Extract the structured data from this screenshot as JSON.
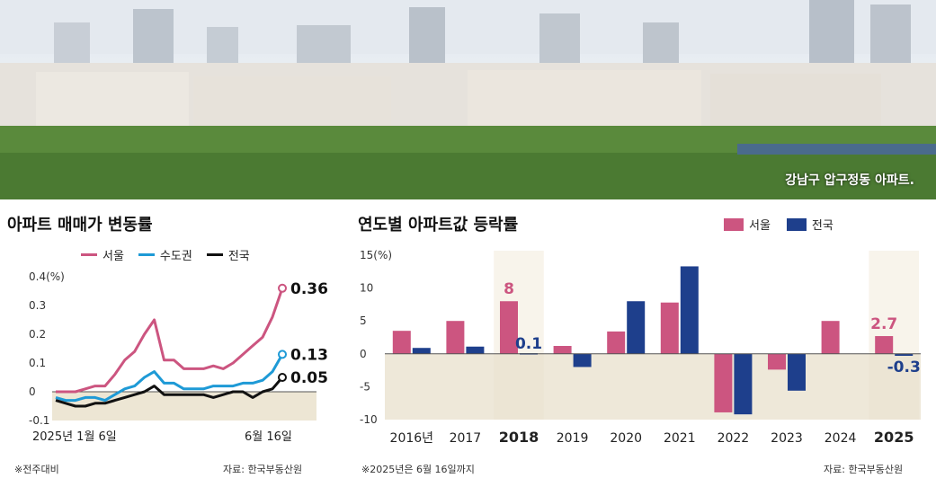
{
  "photo": {
    "caption": "강남구 압구정동 아파트."
  },
  "left_chart": {
    "title": "아파트 매매가 변동률",
    "legend": [
      {
        "name": "서울",
        "color": "#cc5580"
      },
      {
        "name": "수도권",
        "color": "#1e9ad6"
      },
      {
        "name": "전국",
        "color": "#111111"
      }
    ],
    "note": "※전주대비",
    "source": "자료: 한국부동산원"
  },
  "right_chart": {
    "title": "연도별 아파트값 등락률",
    "legend": [
      {
        "name": "서울",
        "color": "#cc5580"
      },
      {
        "name": "전국",
        "color": "#1e3f8c"
      }
    ],
    "note": "※2025년은 6월 16일까지",
    "source": "자료: 한국부동산원"
  },
  "chart_data": [
    {
      "type": "line",
      "title": "아파트 매매가 변동률",
      "unit_label": "(%)",
      "ylim": [
        -0.1,
        0.4
      ],
      "yticks": [
        {
          "value": 0.4,
          "label": "0.4"
        },
        {
          "value": 0.3,
          "label": "0.3"
        },
        {
          "value": 0.2,
          "label": "0.2"
        },
        {
          "value": 0.1,
          "label": "0.1"
        },
        {
          "value": 0,
          "label": "0"
        },
        {
          "value": -0.1,
          "label": "-0.1"
        }
      ],
      "x_start_label": "2025년 1월 6일",
      "x_end_label": "6월 16일",
      "series": [
        {
          "name": "서울",
          "color": "#cc5580",
          "end_label": "0.36",
          "values": [
            0,
            0,
            0,
            0.01,
            0.02,
            0.02,
            0.06,
            0.11,
            0.14,
            0.2,
            0.25,
            0.11,
            0.11,
            0.08,
            0.08,
            0.08,
            0.09,
            0.08,
            0.1,
            0.13,
            0.16,
            0.19,
            0.26,
            0.36
          ]
        },
        {
          "name": "수도권",
          "color": "#1e9ad6",
          "end_label": "0.13",
          "values": [
            -0.02,
            -0.03,
            -0.03,
            -0.02,
            -0.02,
            -0.03,
            -0.01,
            0.01,
            0.02,
            0.05,
            0.07,
            0.03,
            0.03,
            0.01,
            0.01,
            0.01,
            0.02,
            0.02,
            0.02,
            0.03,
            0.03,
            0.04,
            0.07,
            0.13
          ]
        },
        {
          "name": "전국",
          "color": "#111111",
          "end_label": "0.05",
          "values": [
            -0.03,
            -0.04,
            -0.05,
            -0.05,
            -0.04,
            -0.04,
            -0.03,
            -0.02,
            -0.01,
            0,
            0.02,
            -0.01,
            -0.01,
            -0.01,
            -0.01,
            -0.01,
            -0.02,
            -0.01,
            0,
            0,
            -0.02,
            0,
            0.01,
            0.05
          ]
        }
      ]
    },
    {
      "type": "bar",
      "title": "연도별 아파트값 등락률",
      "unit_label": "(%)",
      "ylim": [
        -10,
        15
      ],
      "yticks": [
        {
          "value": 15,
          "label": "15"
        },
        {
          "value": 10,
          "label": "10"
        },
        {
          "value": 5,
          "label": "5"
        },
        {
          "value": 0,
          "label": "0"
        },
        {
          "value": -5,
          "label": "-5"
        },
        {
          "value": -10,
          "label": "-10"
        }
      ],
      "categories": [
        "2016년",
        "2017",
        "2018",
        "2019",
        "2020",
        "2021",
        "2022",
        "2023",
        "2024",
        "2025"
      ],
      "highlight": [
        false,
        false,
        true,
        false,
        false,
        false,
        false,
        false,
        false,
        true
      ],
      "series": [
        {
          "name": "서울",
          "color": "#cc5580",
          "values": [
            3.5,
            5,
            8,
            1.2,
            3.4,
            7.8,
            -8.9,
            -2.4,
            5,
            2.7
          ]
        },
        {
          "name": "전국",
          "color": "#1e3f8c",
          "values": [
            0.9,
            1.1,
            0.1,
            -2,
            8,
            13.3,
            -9.2,
            -5.6,
            0,
            -0.3
          ]
        }
      ],
      "value_labels": [
        {
          "category": "2018",
          "series": "서울",
          "label": "8"
        },
        {
          "category": "2018",
          "series": "전국",
          "label": "0.1"
        },
        {
          "category": "2025",
          "series": "서울",
          "label": "2.7"
        },
        {
          "category": "2025",
          "series": "전국",
          "label": "-0.3"
        }
      ]
    }
  ]
}
